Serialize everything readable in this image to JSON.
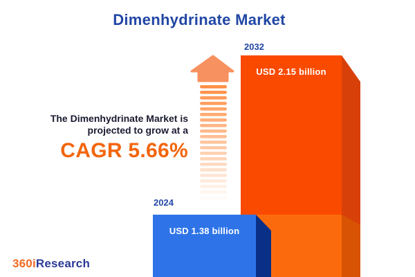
{
  "header": {
    "title": "Dimenhydrinate Market"
  },
  "annotation": {
    "line1": "The Dimenhydrinate Market is",
    "line2": "projected to grow at a",
    "cagr": "CAGR 5.66%"
  },
  "logo": {
    "prefix": "360i",
    "suffix": "Research"
  },
  "chart_data": {
    "type": "bar",
    "title": "Dimenhydrinate Market",
    "categories": [
      "2024",
      "2032"
    ],
    "values": [
      1.38,
      2.15
    ],
    "unit": "USD billion",
    "value_labels": [
      "USD 1.38 billion",
      "USD 2.15 billion"
    ],
    "cagr_percent": 5.66,
    "growth_note": "The Dimenhydrinate Market is projected to grow at a CAGR 5.66%",
    "legend": "none",
    "axes_visible": false,
    "colors": {
      "bar_2024_face": "#2E74E8",
      "bar_2024_side": "#0A2F87",
      "bar_2032_face": "#FA4A00",
      "bar_2032_face_lower": "#FB6B0D",
      "bar_2032_side": "#D84009",
      "bar_2032_side_lower": "#D95304",
      "arrow_head": "#F7915F",
      "arrow_stripe": "#FF8F45",
      "title_text": "#2146A5",
      "body_text": "#191A2F",
      "cagr_text": "#F3650D",
      "logo_orange": "#F26A21",
      "logo_blue": "#2B3A96"
    }
  }
}
